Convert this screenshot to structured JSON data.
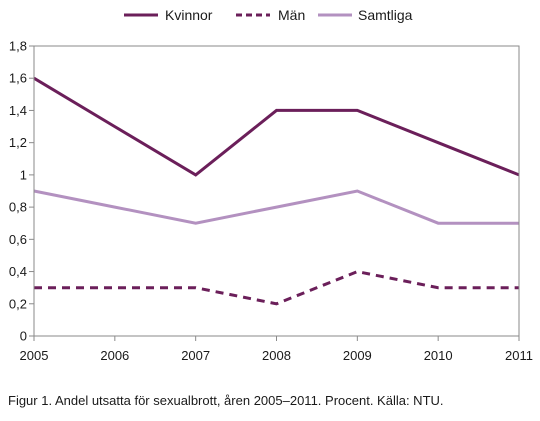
{
  "chart_data": {
    "type": "line",
    "x": [
      2005,
      2006,
      2007,
      2008,
      2009,
      2010,
      2011
    ],
    "x_tick_labels": [
      "2005",
      "2006",
      "2007",
      "2008",
      "2009",
      "2010",
      "2011"
    ],
    "y_tick_labels": [
      "0",
      "0,2",
      "0,4",
      "0,6",
      "0,8",
      "1",
      "1,2",
      "1,4",
      "1,6",
      "1,8"
    ],
    "ylim": [
      0,
      1.8
    ],
    "grid": false,
    "legend_position": "top",
    "series": [
      {
        "name": "Kvinnor",
        "values": [
          1.6,
          1.3,
          1.0,
          1.4,
          1.4,
          1.2,
          1.0
        ],
        "color": "#6b1f5a",
        "style": "solid"
      },
      {
        "name": "Män",
        "values": [
          0.3,
          0.3,
          0.3,
          0.2,
          0.4,
          0.3,
          0.3
        ],
        "color": "#6b1f5a",
        "style": "dashed"
      },
      {
        "name": "Samtliga",
        "values": [
          0.9,
          0.8,
          0.7,
          0.8,
          0.9,
          0.7,
          0.7
        ],
        "color": "#b391c0",
        "style": "solid"
      }
    ]
  },
  "caption": "Figur 1. Andel utsatta för sexualbrott, åren 2005–2011. Procent. Källa: NTU."
}
